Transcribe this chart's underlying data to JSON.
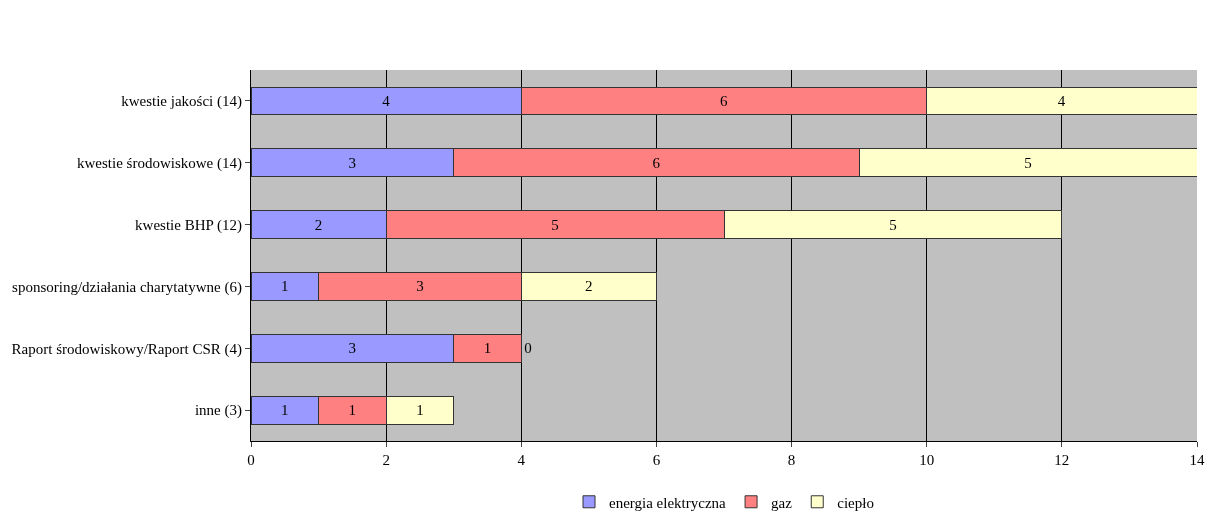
{
  "chart_data": {
    "type": "bar",
    "orientation": "horizontal",
    "stacked": true,
    "data_labels": true,
    "categories": [
      "kwestie jakości (14)",
      "kwestie środowiskowe (14)",
      "kwestie BHP (12)",
      "sponsoring/działania charytatywne (6)",
      "Raport środowiskowy/Raport CSR (4)",
      "inne (3)"
    ],
    "series": [
      {
        "name": "energia elektryczna",
        "color": "#9999ff",
        "values": [
          4,
          3,
          2,
          1,
          3,
          1
        ]
      },
      {
        "name": "gaz",
        "color": "#ff8080",
        "values": [
          6,
          6,
          5,
          3,
          1,
          1
        ]
      },
      {
        "name": "ciepło",
        "color": "#ffffcc",
        "values": [
          4,
          5,
          5,
          2,
          0,
          1
        ]
      }
    ],
    "xlim": [
      0,
      14
    ],
    "xticks": [
      0,
      2,
      4,
      6,
      8,
      10,
      12,
      14
    ],
    "grid": "x",
    "legend": "bottom"
  }
}
